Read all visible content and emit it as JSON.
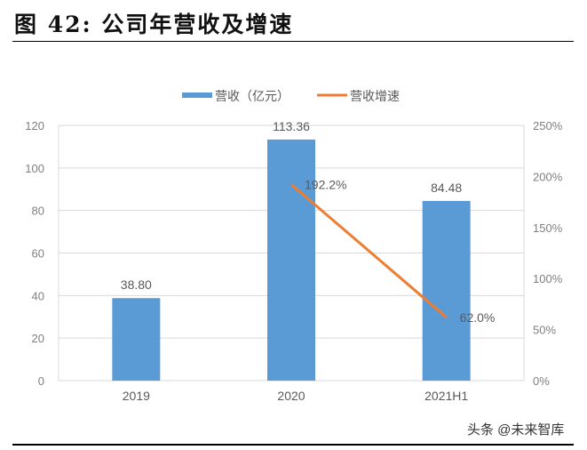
{
  "figure": {
    "title": "图  42:  公司年营收及增速",
    "watermark": "头条 @未来智库"
  },
  "colors": {
    "bar": "#5b9bd5",
    "line": "#ed7d31",
    "grid": "#d9d9d9",
    "tick_text": "#7f7f7f"
  },
  "chart_data": {
    "type": "bar+line",
    "title": "公司年营收及增速",
    "categories": [
      "2019",
      "2020",
      "2021H1"
    ],
    "series": [
      {
        "name": "营收（亿元）",
        "type": "bar",
        "axis": "left",
        "values": [
          38.8,
          113.36,
          84.48
        ],
        "labels": [
          "38.80",
          "113.36",
          "84.48"
        ]
      },
      {
        "name": "营收增速",
        "type": "line",
        "axis": "right",
        "values": [
          null,
          192.2,
          62.0
        ],
        "labels": [
          "",
          "192.2%",
          "62.0%"
        ]
      }
    ],
    "left_axis": {
      "min": 0,
      "max": 120,
      "ticks": [
        "0",
        "20",
        "40",
        "60",
        "80",
        "100",
        "120"
      ]
    },
    "right_axis": {
      "min": 0,
      "max": 250,
      "ticks": [
        "0%",
        "50%",
        "100%",
        "150%",
        "200%",
        "250%"
      ]
    },
    "legend": {
      "position": "top",
      "entries": [
        "营收（亿元）",
        "营收增速"
      ]
    },
    "grid": true
  }
}
